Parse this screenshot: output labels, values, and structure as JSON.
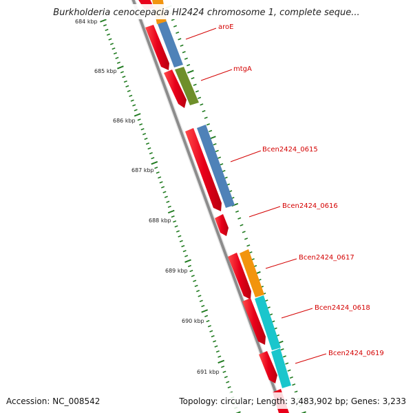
{
  "title": "Burkholderia cenocepacia HI2424 chromosome 1, complete seque...",
  "footer": {
    "accession": "Accession: NC_008542",
    "topology": "Topology: circular; Length: 3,483,902 bp; Genes: 3,233"
  },
  "scale_labels": [
    "684 kbp",
    "685 kbp",
    "686 kbp",
    "687 kbp",
    "688 kbp",
    "689 kbp",
    "690 kbp",
    "691 kbp"
  ],
  "gene_labels": [
    "aroE",
    "mtgA",
    "Bcen2424_0615",
    "Bcen2424_0616",
    "Bcen2424_0617",
    "Bcen2424_0618",
    "Bcen2424_0619"
  ],
  "colors": {
    "backbone": "#8c8c8c",
    "cds": "#e8001a",
    "cog_blue": "#4f82b8",
    "cog_green": "#6e8f2a",
    "cog_orange": "#f2940d",
    "cog_cyan": "#1ac6cc",
    "ticks": "#1f7a1f",
    "label_line": "#d40000"
  }
}
